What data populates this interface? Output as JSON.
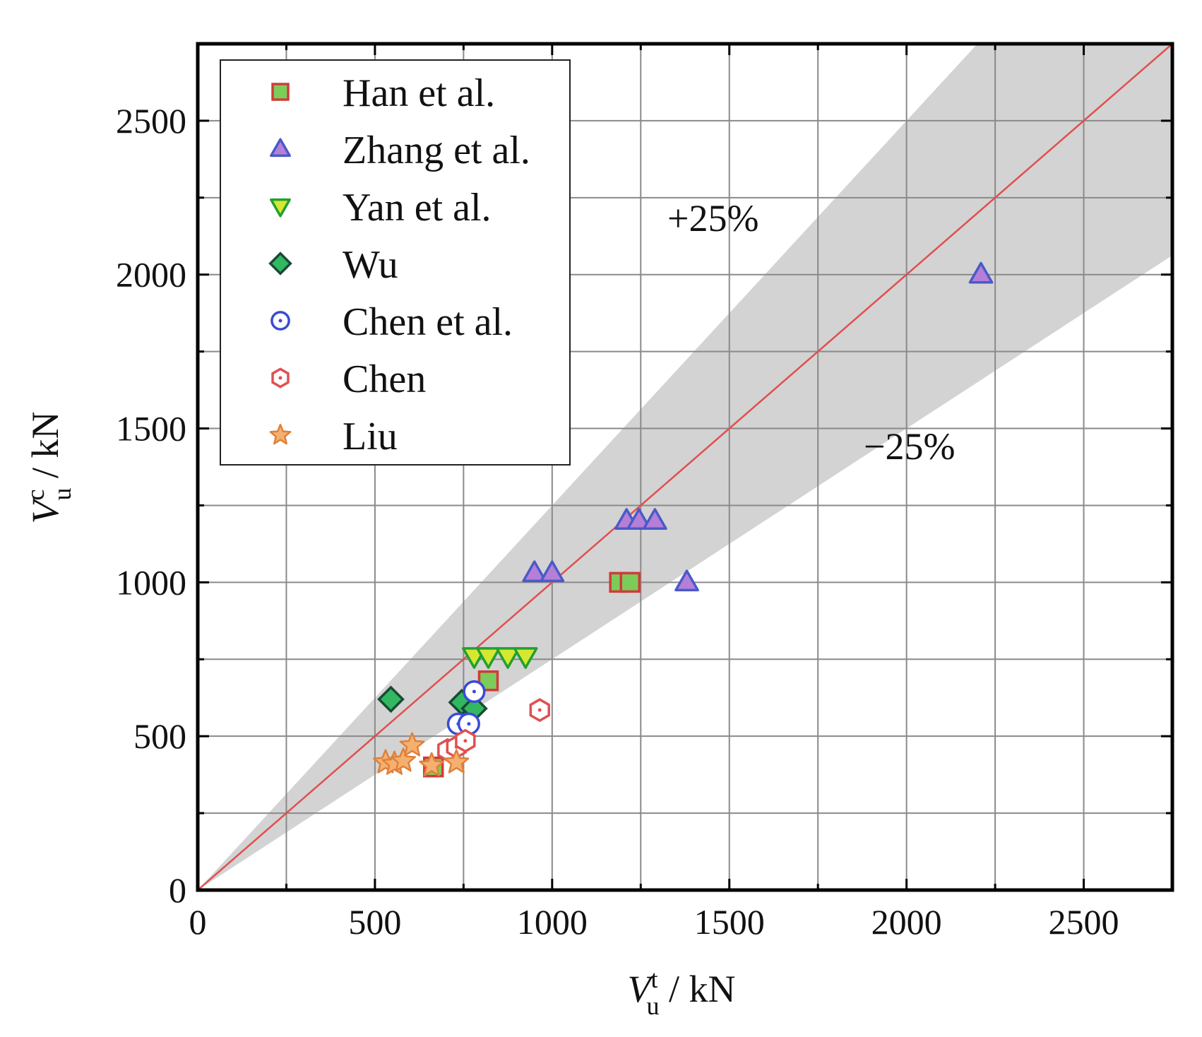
{
  "chart_data": {
    "type": "scatter",
    "xlabel": {
      "base": "V",
      "sub": "u",
      "sup": "t",
      "unit": " / kN"
    },
    "ylabel": {
      "base": "V",
      "sub": "u",
      "sup": "c",
      "unit": " / kN"
    },
    "xlim": [
      0,
      2750
    ],
    "ylim": [
      0,
      2750
    ],
    "x_ticks": [
      0,
      500,
      1000,
      1500,
      2000,
      2500
    ],
    "y_ticks": [
      0,
      500,
      1000,
      1500,
      2000,
      2500
    ],
    "grid": true,
    "legend_position": "top-left",
    "reference_line": {
      "slope": 1,
      "color": "#e05050"
    },
    "band": {
      "upper_label": "+25%",
      "lower_label": "−25%",
      "upper_factor": 1.25,
      "lower_factor": 0.75,
      "color": "#d3d3d3"
    },
    "series": [
      {
        "name": "Han et al.",
        "marker": "square",
        "fill": "#7ccc5a",
        "stroke": "#d23a3a",
        "points": [
          [
            665,
            400
          ],
          [
            820,
            680
          ],
          [
            1190,
            1000
          ],
          [
            1220,
            1000
          ]
        ]
      },
      {
        "name": "Zhang et al.",
        "marker": "triangle-up",
        "fill": "#b57fd8",
        "stroke": "#4a5ac8",
        "points": [
          [
            950,
            1030
          ],
          [
            1000,
            1030
          ],
          [
            1210,
            1200
          ],
          [
            1245,
            1200
          ],
          [
            1290,
            1200
          ],
          [
            1380,
            1000
          ],
          [
            2210,
            2000
          ]
        ]
      },
      {
        "name": "Yan et al.",
        "marker": "triangle-down",
        "fill": "#d4e832",
        "stroke": "#22a030",
        "points": [
          [
            780,
            760
          ],
          [
            820,
            760
          ],
          [
            875,
            760
          ],
          [
            925,
            760
          ]
        ]
      },
      {
        "name": "Wu",
        "marker": "diamond",
        "fill": "#32b860",
        "stroke": "#1a4a35",
        "points": [
          [
            545,
            620
          ],
          [
            745,
            610
          ],
          [
            780,
            590
          ]
        ]
      },
      {
        "name": "Chen et al.",
        "marker": "circle-dot",
        "fill": "#ffffff",
        "stroke": "#3a4ad8",
        "points": [
          [
            735,
            540
          ],
          [
            765,
            540
          ],
          [
            780,
            645
          ]
        ]
      },
      {
        "name": "Chen",
        "marker": "hexagon-dot",
        "fill": "#ffffff",
        "stroke": "#e05050",
        "points": [
          [
            705,
            455
          ],
          [
            730,
            465
          ],
          [
            755,
            485
          ],
          [
            965,
            585
          ]
        ]
      },
      {
        "name": "Liu",
        "marker": "star",
        "fill": "#f5b070",
        "stroke": "#e0803a",
        "points": [
          [
            530,
            415
          ],
          [
            555,
            410
          ],
          [
            580,
            420
          ],
          [
            605,
            470
          ],
          [
            660,
            405
          ],
          [
            730,
            415
          ]
        ]
      }
    ]
  }
}
